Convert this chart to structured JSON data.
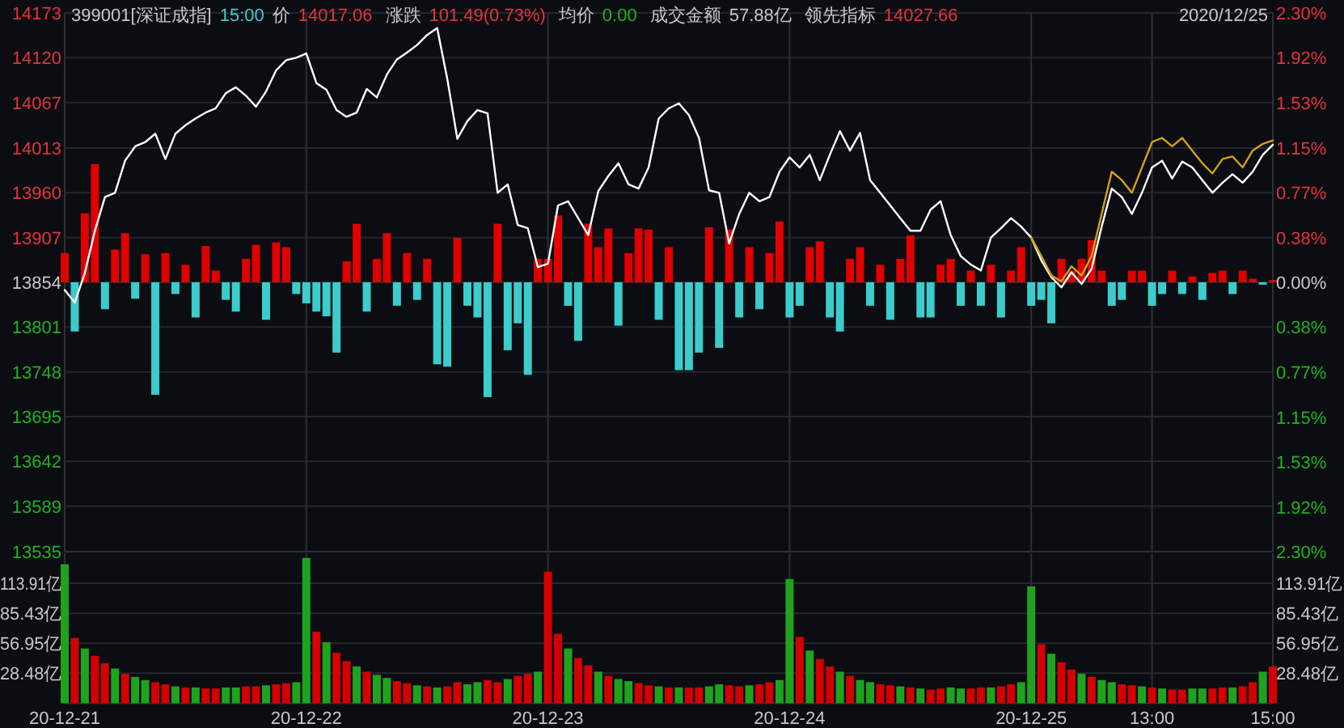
{
  "chart_data": [
    {
      "type": "line",
      "title": "399001[深证成指]",
      "annotations": [
        "15:00",
        "价",
        "14017.06",
        "涨跌",
        "101.49(0.73%)",
        "均价",
        "0.00",
        "成交金额",
        "57.88亿",
        "领先指标",
        "14027.66",
        "2020/12/25"
      ],
      "categories": [
        null,
        null,
        null,
        null,
        null,
        null,
        null,
        null,
        null,
        null,
        null,
        null,
        null,
        null,
        null,
        null,
        null,
        null,
        null,
        null,
        null,
        null,
        null,
        null,
        null,
        null,
        null,
        null,
        null,
        null,
        null,
        null,
        null,
        null,
        null,
        null,
        null,
        null,
        null,
        null,
        null,
        null,
        null,
        null,
        null,
        null,
        null,
        null,
        null,
        null,
        null,
        null,
        null,
        null,
        null,
        null,
        null,
        null,
        null,
        null,
        null,
        null,
        null,
        null,
        null,
        null,
        null,
        null,
        null,
        null,
        null,
        null,
        null,
        null,
        null,
        null,
        null,
        null,
        null,
        null,
        null,
        null,
        null,
        null,
        null,
        null,
        null,
        null,
        null,
        null,
        null,
        null,
        null,
        null,
        null,
        null,
        null,
        null,
        null,
        null,
        null,
        null,
        null,
        null,
        null,
        null,
        null,
        null,
        null,
        null,
        null,
        null,
        null,
        null,
        null,
        null,
        null,
        null,
        null,
        null,
        null
      ],
      "ylim": [
        13535,
        14173
      ],
      "yticks": [
        14173,
        14120,
        14067,
        14013,
        13960,
        13907,
        13854,
        13801,
        13748,
        13695,
        13642,
        13589,
        13535
      ],
      "y2lim": [
        -2.3,
        2.3
      ],
      "y2ticks": [
        {
          "value": 2.3,
          "label": "2.30%"
        },
        {
          "value": 1.92,
          "label": "1.92%"
        },
        {
          "value": 1.53,
          "label": "1.53%"
        },
        {
          "value": 1.15,
          "label": "1.15%"
        },
        {
          "value": 0.77,
          "label": "0.77%"
        },
        {
          "value": 0.38,
          "label": "0.38%"
        },
        {
          "value": 0,
          "label": "0.00%"
        },
        {
          "value": -0.38,
          "label": "0.38%"
        },
        {
          "value": -0.77,
          "label": "0.77%"
        },
        {
          "value": -1.15,
          "label": "1.15%"
        },
        {
          "value": -1.53,
          "label": "1.53%"
        },
        {
          "value": -1.92,
          "label": "1.92%"
        },
        {
          "value": -2.3,
          "label": "2.30%"
        }
      ],
      "tick_labels": "y",
      "grid": true,
      "series": [
        {
          "type": "bar",
          "axis": "y2",
          "values": [
            0.25,
            -0.42,
            0.59,
            1.01,
            -0.23,
            0.28,
            0.42,
            -0.14,
            0.24,
            -0.96,
            0.25,
            -0.1,
            0.15,
            -0.3,
            0.31,
            0.1,
            -0.15,
            -0.25,
            0.2,
            0.32,
            -0.32,
            0.34,
            0.3,
            -0.1,
            -0.18,
            -0.25,
            -0.29,
            -0.6,
            0.18,
            0.5,
            -0.25,
            0.2,
            0.42,
            -0.2,
            0.25,
            -0.15,
            0.2,
            -0.7,
            -0.72,
            0.38,
            -0.2,
            -0.3,
            -0.98,
            0.5,
            -0.58,
            -0.35,
            -0.79,
            0.2,
            0.2,
            0.57,
            -0.2,
            -0.5,
            0.5,
            0.3,
            0.46,
            -0.37,
            0.25,
            0.46,
            0.45,
            -0.32,
            0.3,
            -0.75,
            -0.75,
            -0.6,
            0.47,
            -0.56,
            0.45,
            -0.3,
            0.3,
            -0.23,
            0.25,
            0.52,
            -0.3,
            -0.2,
            0.3,
            0.35,
            -0.3,
            -0.42,
            0.2,
            0.3,
            -0.2,
            0.15,
            -0.32,
            0.2,
            0.4,
            -0.3,
            -0.3,
            0.15,
            0.2,
            -0.2,
            0.1,
            -0.2,
            0.15,
            -0.3,
            0.1,
            0.3,
            -0.2,
            -0.15,
            -0.35,
            0.2,
            0.1,
            0.2,
            0.36,
            0.1,
            -0.2,
            -0.15,
            0.1,
            0.1,
            -0.2,
            -0.1,
            0.1,
            -0.1,
            0.05,
            -0.15,
            0.08,
            0.1,
            -0.1,
            0.1,
            0.03,
            -0.02,
            0.02
          ],
          "colors": [
            "#e00000",
            "#3ccccc",
            "#e00000",
            "#e00000",
            "#3ccccc",
            "#e00000",
            "#e00000",
            "#3ccccc",
            "#e00000",
            "#3ccccc",
            "#e00000",
            "#3ccccc",
            "#e00000",
            "#3ccccc",
            "#e00000",
            "#e00000",
            "#3ccccc",
            "#3ccccc",
            "#e00000",
            "#e00000",
            "#3ccccc",
            "#e00000",
            "#e00000",
            "#3ccccc",
            "#3ccccc",
            "#3ccccc",
            "#3ccccc",
            "#3ccccc",
            "#e00000",
            "#e00000",
            "#3ccccc",
            "#e00000",
            "#e00000",
            "#3ccccc",
            "#e00000",
            "#3ccccc",
            "#e00000",
            "#3ccccc",
            "#3ccccc",
            "#e00000",
            "#3ccccc",
            "#3ccccc",
            "#3ccccc",
            "#e00000",
            "#3ccccc",
            "#3ccccc",
            "#3ccccc",
            "#e00000",
            "#e00000",
            "#e00000",
            "#3ccccc",
            "#3ccccc",
            "#e00000",
            "#e00000",
            "#e00000",
            "#3ccccc",
            "#e00000",
            "#e00000",
            "#e00000",
            "#3ccccc",
            "#e00000",
            "#3ccccc",
            "#3ccccc",
            "#3ccccc",
            "#e00000",
            "#3ccccc",
            "#e00000",
            "#3ccccc",
            "#e00000",
            "#3ccccc",
            "#e00000",
            "#e00000",
            "#3ccccc",
            "#3ccccc",
            "#e00000",
            "#e00000",
            "#3ccccc",
            "#3ccccc",
            "#e00000",
            "#e00000",
            "#3ccccc",
            "#e00000",
            "#3ccccc",
            "#e00000",
            "#e00000",
            "#3ccccc",
            "#3ccccc",
            "#e00000",
            "#e00000",
            "#3ccccc",
            "#e00000",
            "#3ccccc",
            "#e00000",
            "#3ccccc",
            "#e00000",
            "#e00000",
            "#3ccccc",
            "#3ccccc",
            "#3ccccc",
            "#e00000",
            "#e00000",
            "#e00000",
            "#e00000",
            "#e00000",
            "#3ccccc",
            "#3ccccc",
            "#e00000",
            "#e00000",
            "#3ccccc",
            "#3ccccc",
            "#e00000",
            "#3ccccc",
            "#e00000",
            "#3ccccc",
            "#e00000",
            "#e00000",
            "#3ccccc",
            "#e00000",
            "#e00000",
            "#3ccccc",
            "#e00000"
          ]
        },
        {
          "type": "line",
          "color": "#ffffff",
          "values": [
            13845,
            13830,
            13865,
            13915,
            13955,
            13960,
            13998,
            14015,
            14020,
            14030,
            14000,
            14030,
            14040,
            14048,
            14055,
            14060,
            14078,
            14085,
            14075,
            14062,
            14080,
            14105,
            14117,
            14120,
            14125,
            14090,
            14082,
            14058,
            14050,
            14055,
            14083,
            14073,
            14100,
            14118,
            14126,
            14135,
            14147,
            14155,
            14095,
            14024,
            14045,
            14058,
            14054,
            13960,
            13970,
            13922,
            13918,
            13872,
            13876,
            13945,
            13950,
            13930,
            13910,
            13962,
            13980,
            13995,
            13970,
            13965,
            13990,
            14048,
            14060,
            14066,
            14052,
            14025,
            13963,
            13960,
            13900,
            13935,
            13960,
            13950,
            13955,
            13985,
            14002,
            13990,
            14005,
            13975,
            14005,
            14033,
            14010,
            14031,
            13975,
            13960,
            13945,
            13930,
            13915,
            13915,
            13940,
            13950,
            13910,
            13885,
            13875,
            13868,
            13907,
            13918,
            13930,
            13920,
            13907,
            13880,
            13860,
            13848,
            13866,
            13852,
            13870,
            13920,
            13965,
            13955,
            13935,
            13960,
            13990,
            13998,
            13977,
            13997,
            13990,
            13975,
            13960,
            13972,
            13982,
            13972,
            13985,
            14005,
            14017
          ]
        },
        {
          "type": "line",
          "color": "#d4a017",
          "values": [
            null,
            null,
            null,
            null,
            null,
            null,
            null,
            null,
            null,
            null,
            null,
            null,
            null,
            null,
            null,
            null,
            null,
            null,
            null,
            null,
            null,
            null,
            null,
            null,
            null,
            null,
            null,
            null,
            null,
            null,
            null,
            null,
            null,
            null,
            null,
            null,
            null,
            null,
            null,
            null,
            null,
            null,
            null,
            null,
            null,
            null,
            null,
            null,
            null,
            null,
            null,
            null,
            null,
            null,
            null,
            null,
            null,
            null,
            null,
            null,
            null,
            null,
            null,
            null,
            null,
            null,
            null,
            null,
            null,
            null,
            null,
            null,
            null,
            null,
            null,
            null,
            null,
            null,
            null,
            null,
            null,
            null,
            null,
            null,
            null,
            null,
            null,
            null,
            null,
            null,
            null,
            null,
            null,
            null,
            null,
            null,
            13907,
            13885,
            13862,
            13855,
            13873,
            13862,
            13885,
            13935,
            13985,
            13975,
            13960,
            13990,
            14020,
            14025,
            14015,
            14025,
            14010,
            13995,
            13983,
            14000,
            14003,
            13990,
            14010,
            14018,
            14022
          ]
        }
      ]
    },
    {
      "type": "bar",
      "categories": [
        "20-12-21",
        null,
        null,
        null,
        null,
        null,
        null,
        null,
        null,
        null,
        null,
        null,
        null,
        null,
        null,
        null,
        null,
        null,
        null,
        null,
        null,
        null,
        null,
        null,
        "20-12-22",
        null,
        null,
        null,
        null,
        null,
        null,
        null,
        null,
        null,
        null,
        null,
        null,
        null,
        null,
        null,
        null,
        null,
        null,
        null,
        null,
        null,
        null,
        null,
        "20-12-23",
        null,
        null,
        null,
        null,
        null,
        null,
        null,
        null,
        null,
        null,
        null,
        null,
        null,
        null,
        null,
        null,
        null,
        null,
        null,
        null,
        null,
        null,
        null,
        "20-12-24",
        null,
        null,
        null,
        null,
        null,
        null,
        null,
        null,
        null,
        null,
        null,
        null,
        null,
        null,
        null,
        null,
        null,
        null,
        null,
        null,
        null,
        null,
        null,
        "20-12-25",
        null,
        null,
        null,
        null,
        null,
        null,
        null,
        null,
        null,
        null,
        null,
        "13:00",
        null,
        null,
        null,
        null,
        null,
        null,
        null,
        null,
        null,
        null,
        null,
        "15:00"
      ],
      "ylim": [
        0,
        142.39
      ],
      "yticks": [
        {
          "value": 113.91,
          "label": "113.91亿"
        },
        {
          "value": 85.43,
          "label": "85.43亿"
        },
        {
          "value": 56.95,
          "label": "56.95亿"
        },
        {
          "value": 28.48,
          "label": "28.48亿"
        }
      ],
      "y2lim": [
        0,
        142.39
      ],
      "y2ticks": [
        {
          "value": 113.91,
          "label": "113.91亿"
        },
        {
          "value": 85.43,
          "label": "85.43亿"
        },
        {
          "value": 56.95,
          "label": "56.95亿"
        },
        {
          "value": 28.48,
          "label": "28.48亿"
        }
      ],
      "grid": true,
      "series": [
        {
          "values": [
            132,
            62,
            52,
            45,
            38,
            33,
            28,
            25,
            22,
            20,
            18,
            16,
            15,
            15,
            14,
            14,
            15,
            15,
            16,
            16,
            17,
            18,
            19,
            20,
            138,
            68,
            58,
            48,
            40,
            35,
            30,
            27,
            24,
            21,
            19,
            17,
            16,
            15,
            16,
            20,
            18,
            20,
            22,
            20,
            23,
            26,
            28,
            30,
            125,
            66,
            52,
            43,
            36,
            30,
            26,
            23,
            21,
            19,
            17,
            16,
            15,
            15,
            15,
            15,
            16,
            18,
            17,
            16,
            17,
            18,
            20,
            22,
            118,
            63,
            50,
            42,
            35,
            30,
            26,
            22,
            20,
            18,
            17,
            16,
            15,
            14,
            13,
            14,
            15,
            14,
            14,
            15,
            15,
            16,
            18,
            20,
            111,
            56,
            47,
            39,
            32,
            28,
            25,
            22,
            20,
            18,
            17,
            16,
            15,
            14,
            13,
            13,
            14,
            14,
            14,
            15,
            15,
            16,
            20,
            30,
            35
          ],
          "colors": [
            "#1fa31f",
            "#d40000",
            "#1fa31f",
            "#d40000",
            "#d40000",
            "#1fa31f",
            "#d40000",
            "#1fa31f",
            "#1fa31f",
            "#d40000",
            "#d40000",
            "#1fa31f",
            "#d40000",
            "#1fa31f",
            "#d40000",
            "#d40000",
            "#1fa31f",
            "#1fa31f",
            "#d40000",
            "#d40000",
            "#1fa31f",
            "#d40000",
            "#d40000",
            "#1fa31f",
            "#1fa31f",
            "#d40000",
            "#1fa31f",
            "#d40000",
            "#d40000",
            "#1fa31f",
            "#d40000",
            "#1fa31f",
            "#1fa31f",
            "#d40000",
            "#d40000",
            "#1fa31f",
            "#d40000",
            "#1fa31f",
            "#d40000",
            "#d40000",
            "#1fa31f",
            "#1fa31f",
            "#d40000",
            "#d40000",
            "#1fa31f",
            "#d40000",
            "#d40000",
            "#1fa31f",
            "#d40000",
            "#d40000",
            "#1fa31f",
            "#d40000",
            "#d40000",
            "#1fa31f",
            "#d40000",
            "#1fa31f",
            "#1fa31f",
            "#d40000",
            "#d40000",
            "#1fa31f",
            "#d40000",
            "#1fa31f",
            "#d40000",
            "#d40000",
            "#1fa31f",
            "#1fa31f",
            "#d40000",
            "#d40000",
            "#1fa31f",
            "#d40000",
            "#d40000",
            "#1fa31f",
            "#1fa31f",
            "#d40000",
            "#1fa31f",
            "#d40000",
            "#d40000",
            "#1fa31f",
            "#d40000",
            "#1fa31f",
            "#1fa31f",
            "#d40000",
            "#d40000",
            "#1fa31f",
            "#d40000",
            "#1fa31f",
            "#d40000",
            "#d40000",
            "#1fa31f",
            "#1fa31f",
            "#d40000",
            "#d40000",
            "#1fa31f",
            "#d40000",
            "#d40000",
            "#1fa31f",
            "#1fa31f",
            "#d40000",
            "#1fa31f",
            "#d40000",
            "#d40000",
            "#1fa31f",
            "#d40000",
            "#1fa31f",
            "#1fa31f",
            "#d40000",
            "#d40000",
            "#1fa31f",
            "#d40000",
            "#1fa31f",
            "#d40000",
            "#d40000",
            "#1fa31f",
            "#1fa31f",
            "#d40000",
            "#d40000",
            "#1fa31f",
            "#d40000",
            "#d40000",
            "#1fa31f",
            "#d40000"
          ]
        }
      ]
    }
  ]
}
